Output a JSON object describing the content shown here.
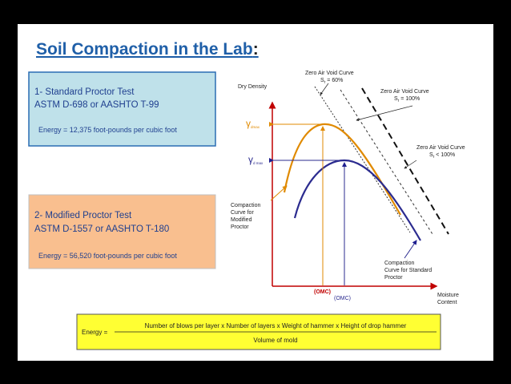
{
  "header": {
    "title": "Soil Compaction in the Lab",
    "colon": ":"
  },
  "standard_box": {
    "heading": "1- Standard Proctor Test",
    "standards": "ASTM D-698  or  AASHTO T-99",
    "energy": "Energy  = 12,375 foot-pounds per cubic foot"
  },
  "modified_box": {
    "heading": "2- Modified Proctor Test",
    "standards": "ASTM D-1557  or  AASHTO T-180",
    "energy": "Energy  =  56,520 foot-pounds per cubic foot"
  },
  "diagram": {
    "y_axis": "Dry Density",
    "x_axis": [
      "Moisture",
      "Content"
    ],
    "zav_60": {
      "line1": "Zero Air Void Curve",
      "s": "S",
      "sub": "r",
      "rest": " = 60%"
    },
    "zav_100": {
      "line1": "Zero Air Void Curve",
      "s": "S",
      "sub": "r",
      "rest": " = 100%"
    },
    "zav_lt100": {
      "line1": "Zero Air Void Curve",
      "s": "S",
      "sub": "r",
      "rest": " < 100%"
    },
    "gamma_modified": {
      "symbol": "γ",
      "sub": "dmax"
    },
    "gamma_standard": {
      "symbol": "γ",
      "sub": "d max"
    },
    "omc_modified": "(OMC)",
    "omc_standard": "(OMC)",
    "curve_modified": [
      "Compaction",
      "Curve for",
      "Modified",
      "Proctor"
    ],
    "curve_standard": [
      "Compaction",
      "Curve for Standard",
      "Proctor"
    ]
  },
  "formula": {
    "lhs": "Energy =",
    "numerator": "Number of blows per layer x Number of layers x Weight of hammer x Height of drop hammer",
    "denominator": "Volume of mold"
  }
}
